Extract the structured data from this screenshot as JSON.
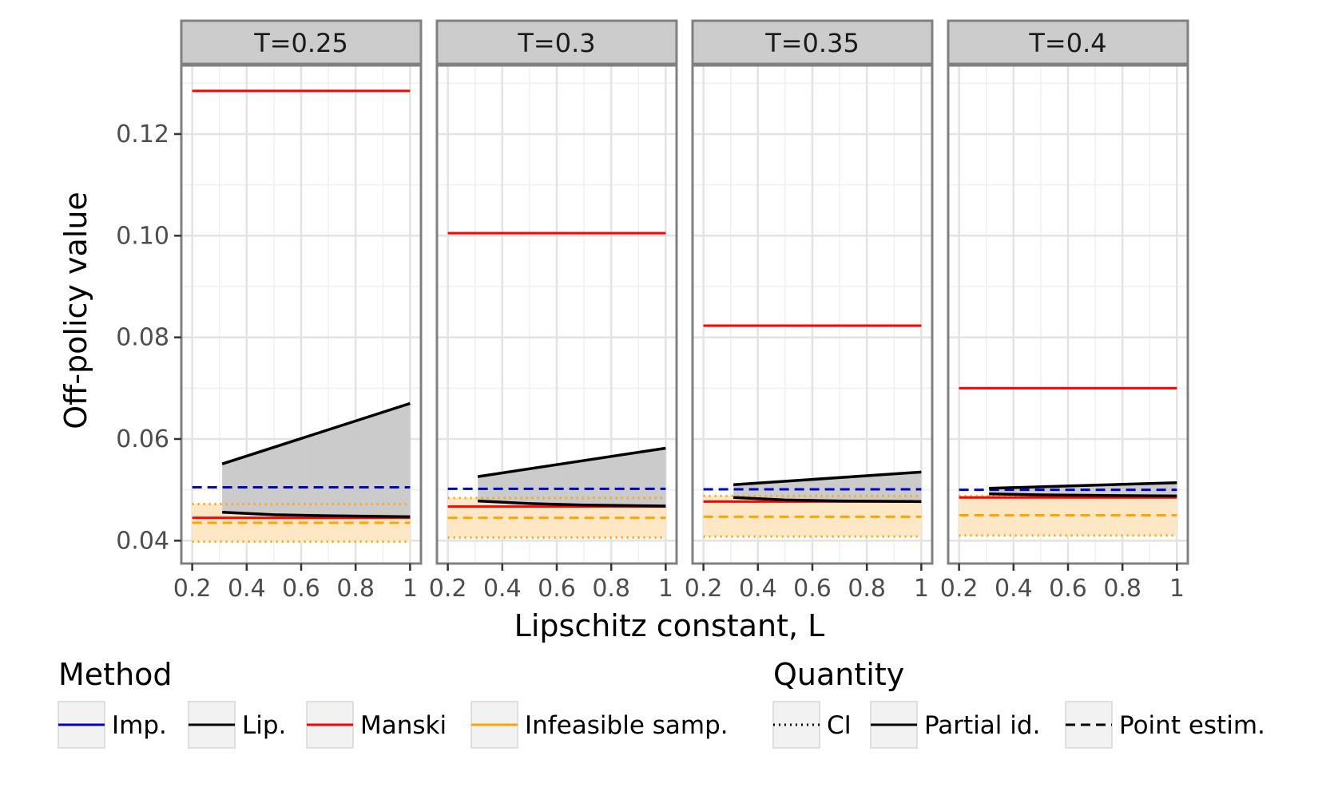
{
  "chart_data": {
    "type": "line",
    "ylabel": "Off-policy value",
    "xlabel": "Lipschitz constant, L",
    "xlim": [
      0.16,
      1.04
    ],
    "ylim": [
      0.0355,
      0.1335
    ],
    "x_ticks": [
      0.2,
      0.4,
      0.6,
      0.8,
      1.0
    ],
    "x_tick_labels": [
      "0.2",
      "0.4",
      "0.6",
      "0.8",
      "1"
    ],
    "y_ticks": [
      0.04,
      0.06,
      0.08,
      0.1,
      0.12
    ],
    "y_tick_labels": [
      "0.04",
      "0.06",
      "0.08",
      "0.10",
      "0.12"
    ],
    "colors": {
      "imp": "#0000cc",
      "lip": "#000000",
      "manski": "#ff0000",
      "infeasible": "#ffa500",
      "lip_fill": "#c8c8c8",
      "infeasible_fill": "#fde7c4",
      "strip": "#cccccc",
      "panel_border": "#808080",
      "grid": "#e3e3e3"
    },
    "panels": [
      {
        "title": "T=0.25",
        "manski_upper": 0.1285,
        "manski_lower": 0.0445,
        "imp_point": 0.0505,
        "lip_upper": [
          [
            0.31,
            0.0551
          ],
          [
            1.0,
            0.067
          ]
        ],
        "lip_lower": [
          [
            0.31,
            0.0456
          ],
          [
            0.5,
            0.0451
          ],
          [
            0.7,
            0.0449
          ],
          [
            1.0,
            0.0447
          ]
        ],
        "inf_point": 0.0435,
        "inf_ci_upper": 0.0472,
        "inf_ci_lower": 0.0398
      },
      {
        "title": "T=0.3",
        "manski_upper": 0.1005,
        "manski_lower": 0.0467,
        "imp_point": 0.0502,
        "lip_upper": [
          [
            0.31,
            0.0526
          ],
          [
            1.0,
            0.0582
          ]
        ],
        "lip_lower": [
          [
            0.31,
            0.0478
          ],
          [
            0.5,
            0.0473
          ],
          [
            0.7,
            0.047
          ],
          [
            1.0,
            0.0468
          ]
        ],
        "inf_point": 0.0445,
        "inf_ci_upper": 0.0484,
        "inf_ci_lower": 0.0406
      },
      {
        "title": "T=0.35",
        "manski_upper": 0.0823,
        "manski_lower": 0.0477,
        "imp_point": 0.0501,
        "lip_upper": [
          [
            0.31,
            0.051
          ],
          [
            1.0,
            0.0535
          ]
        ],
        "lip_lower": [
          [
            0.31,
            0.0485
          ],
          [
            0.5,
            0.048
          ],
          [
            0.7,
            0.0478
          ],
          [
            1.0,
            0.0477
          ]
        ],
        "inf_point": 0.0447,
        "inf_ci_upper": 0.0488,
        "inf_ci_lower": 0.0408
      },
      {
        "title": "T=0.4",
        "manski_upper": 0.07,
        "manski_lower": 0.0485,
        "imp_point": 0.05,
        "lip_upper": [
          [
            0.31,
            0.0503
          ],
          [
            1.0,
            0.0514
          ]
        ],
        "lip_lower": [
          [
            0.31,
            0.0492
          ],
          [
            0.5,
            0.049
          ],
          [
            0.7,
            0.0489
          ],
          [
            1.0,
            0.0488
          ]
        ],
        "inf_point": 0.045,
        "inf_ci_upper": 0.0488,
        "inf_ci_lower": 0.041
      }
    ],
    "legend_method": {
      "title": "Method",
      "items": [
        {
          "label": "Imp.",
          "color": "#0000cc"
        },
        {
          "label": "Lip.",
          "color": "#000000"
        },
        {
          "label": "Manski",
          "color": "#ff0000"
        },
        {
          "label": "Infeasible samp.",
          "color": "#ffa500"
        }
      ]
    },
    "legend_quantity": {
      "title": "Quantity",
      "items": [
        {
          "label": "CI",
          "dash": "dotted"
        },
        {
          "label": "Partial id.",
          "dash": "solid"
        },
        {
          "label": "Point estim.",
          "dash": "dashed"
        }
      ]
    }
  }
}
